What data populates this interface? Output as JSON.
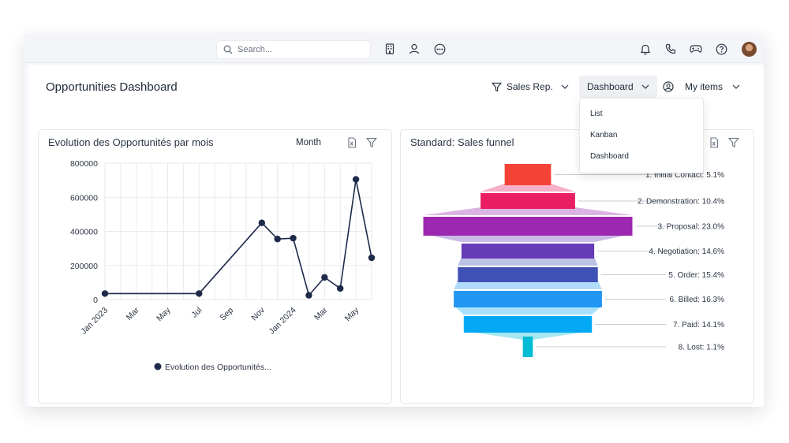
{
  "topbar": {
    "search_placeholder": "Search...",
    "icons": [
      "building-icon",
      "user-icon",
      "more-icon",
      "bell-icon",
      "phone-icon",
      "gamepad-icon",
      "help-icon"
    ]
  },
  "header": {
    "title": "Opportunities Dashboard",
    "filter_label": "Sales Rep.",
    "view_label": "Dashboard",
    "scope_label": "My items"
  },
  "view_menu": {
    "items": [
      "List",
      "Kanban",
      "Dashboard"
    ]
  },
  "line_card": {
    "title": "Evolution des Opportunités par mois",
    "grouping": "Month"
  },
  "funnel_card": {
    "title": "Standard: Sales funnel"
  },
  "chart_data": [
    {
      "type": "line",
      "title": "Evolution des Opportunités par mois",
      "x": [
        "Jan 2023",
        "Mar",
        "May",
        "Jul",
        "Sep",
        "Nov",
        "Jan 2024",
        "Mar",
        "May"
      ],
      "x_tick_labels": [
        "Jan 2023",
        "Mar",
        "May",
        "Jul",
        "Sep",
        "Nov",
        "Jan 2024",
        "Mar",
        "May"
      ],
      "series": [
        {
          "name": "Evolution des Opportunités...",
          "points": [
            {
              "x": "2023-01",
              "y": 35000
            },
            {
              "x": "2023-07",
              "y": 35000
            },
            {
              "x": "2023-11",
              "y": 450000
            },
            {
              "x": "2023-12",
              "y": 355000
            },
            {
              "x": "2024-01",
              "y": 360000
            },
            {
              "x": "2024-02",
              "y": 25000
            },
            {
              "x": "2024-03",
              "y": 130000
            },
            {
              "x": "2024-04",
              "y": 65000
            },
            {
              "x": "2024-05",
              "y": 705000
            },
            {
              "x": "2024-06",
              "y": 245000
            }
          ],
          "color": "#1e2a4a"
        }
      ],
      "y_ticks": [
        "800000",
        "600000",
        "400000",
        "200000",
        "0"
      ],
      "ylim": [
        0,
        800000
      ],
      "grid": true,
      "legend": "bottom"
    },
    {
      "type": "funnel",
      "title": "Standard: Sales funnel",
      "stages": [
        {
          "label": "1. Initial Contact: 5.1%",
          "value": 5.1,
          "color": "#f44336"
        },
        {
          "label": "2. Demonstration: 10.4%",
          "value": 10.4,
          "color": "#e91e63"
        },
        {
          "label": "3. Proposal: 23.0%",
          "value": 23.0,
          "color": "#9c27b0"
        },
        {
          "label": "4. Negotiation: 14.6%",
          "value": 14.6,
          "color": "#673ab7"
        },
        {
          "label": "5. Order: 15.4%",
          "value": 15.4,
          "color": "#3f51b5"
        },
        {
          "label": "6. Billed: 16.3%",
          "value": 16.3,
          "color": "#2196f3"
        },
        {
          "label": "7. Paid: 14.1%",
          "value": 14.1,
          "color": "#03a9f4"
        },
        {
          "label": "8. Lost: 1.1%",
          "value": 1.1,
          "color": "#00bcd4"
        }
      ]
    }
  ]
}
